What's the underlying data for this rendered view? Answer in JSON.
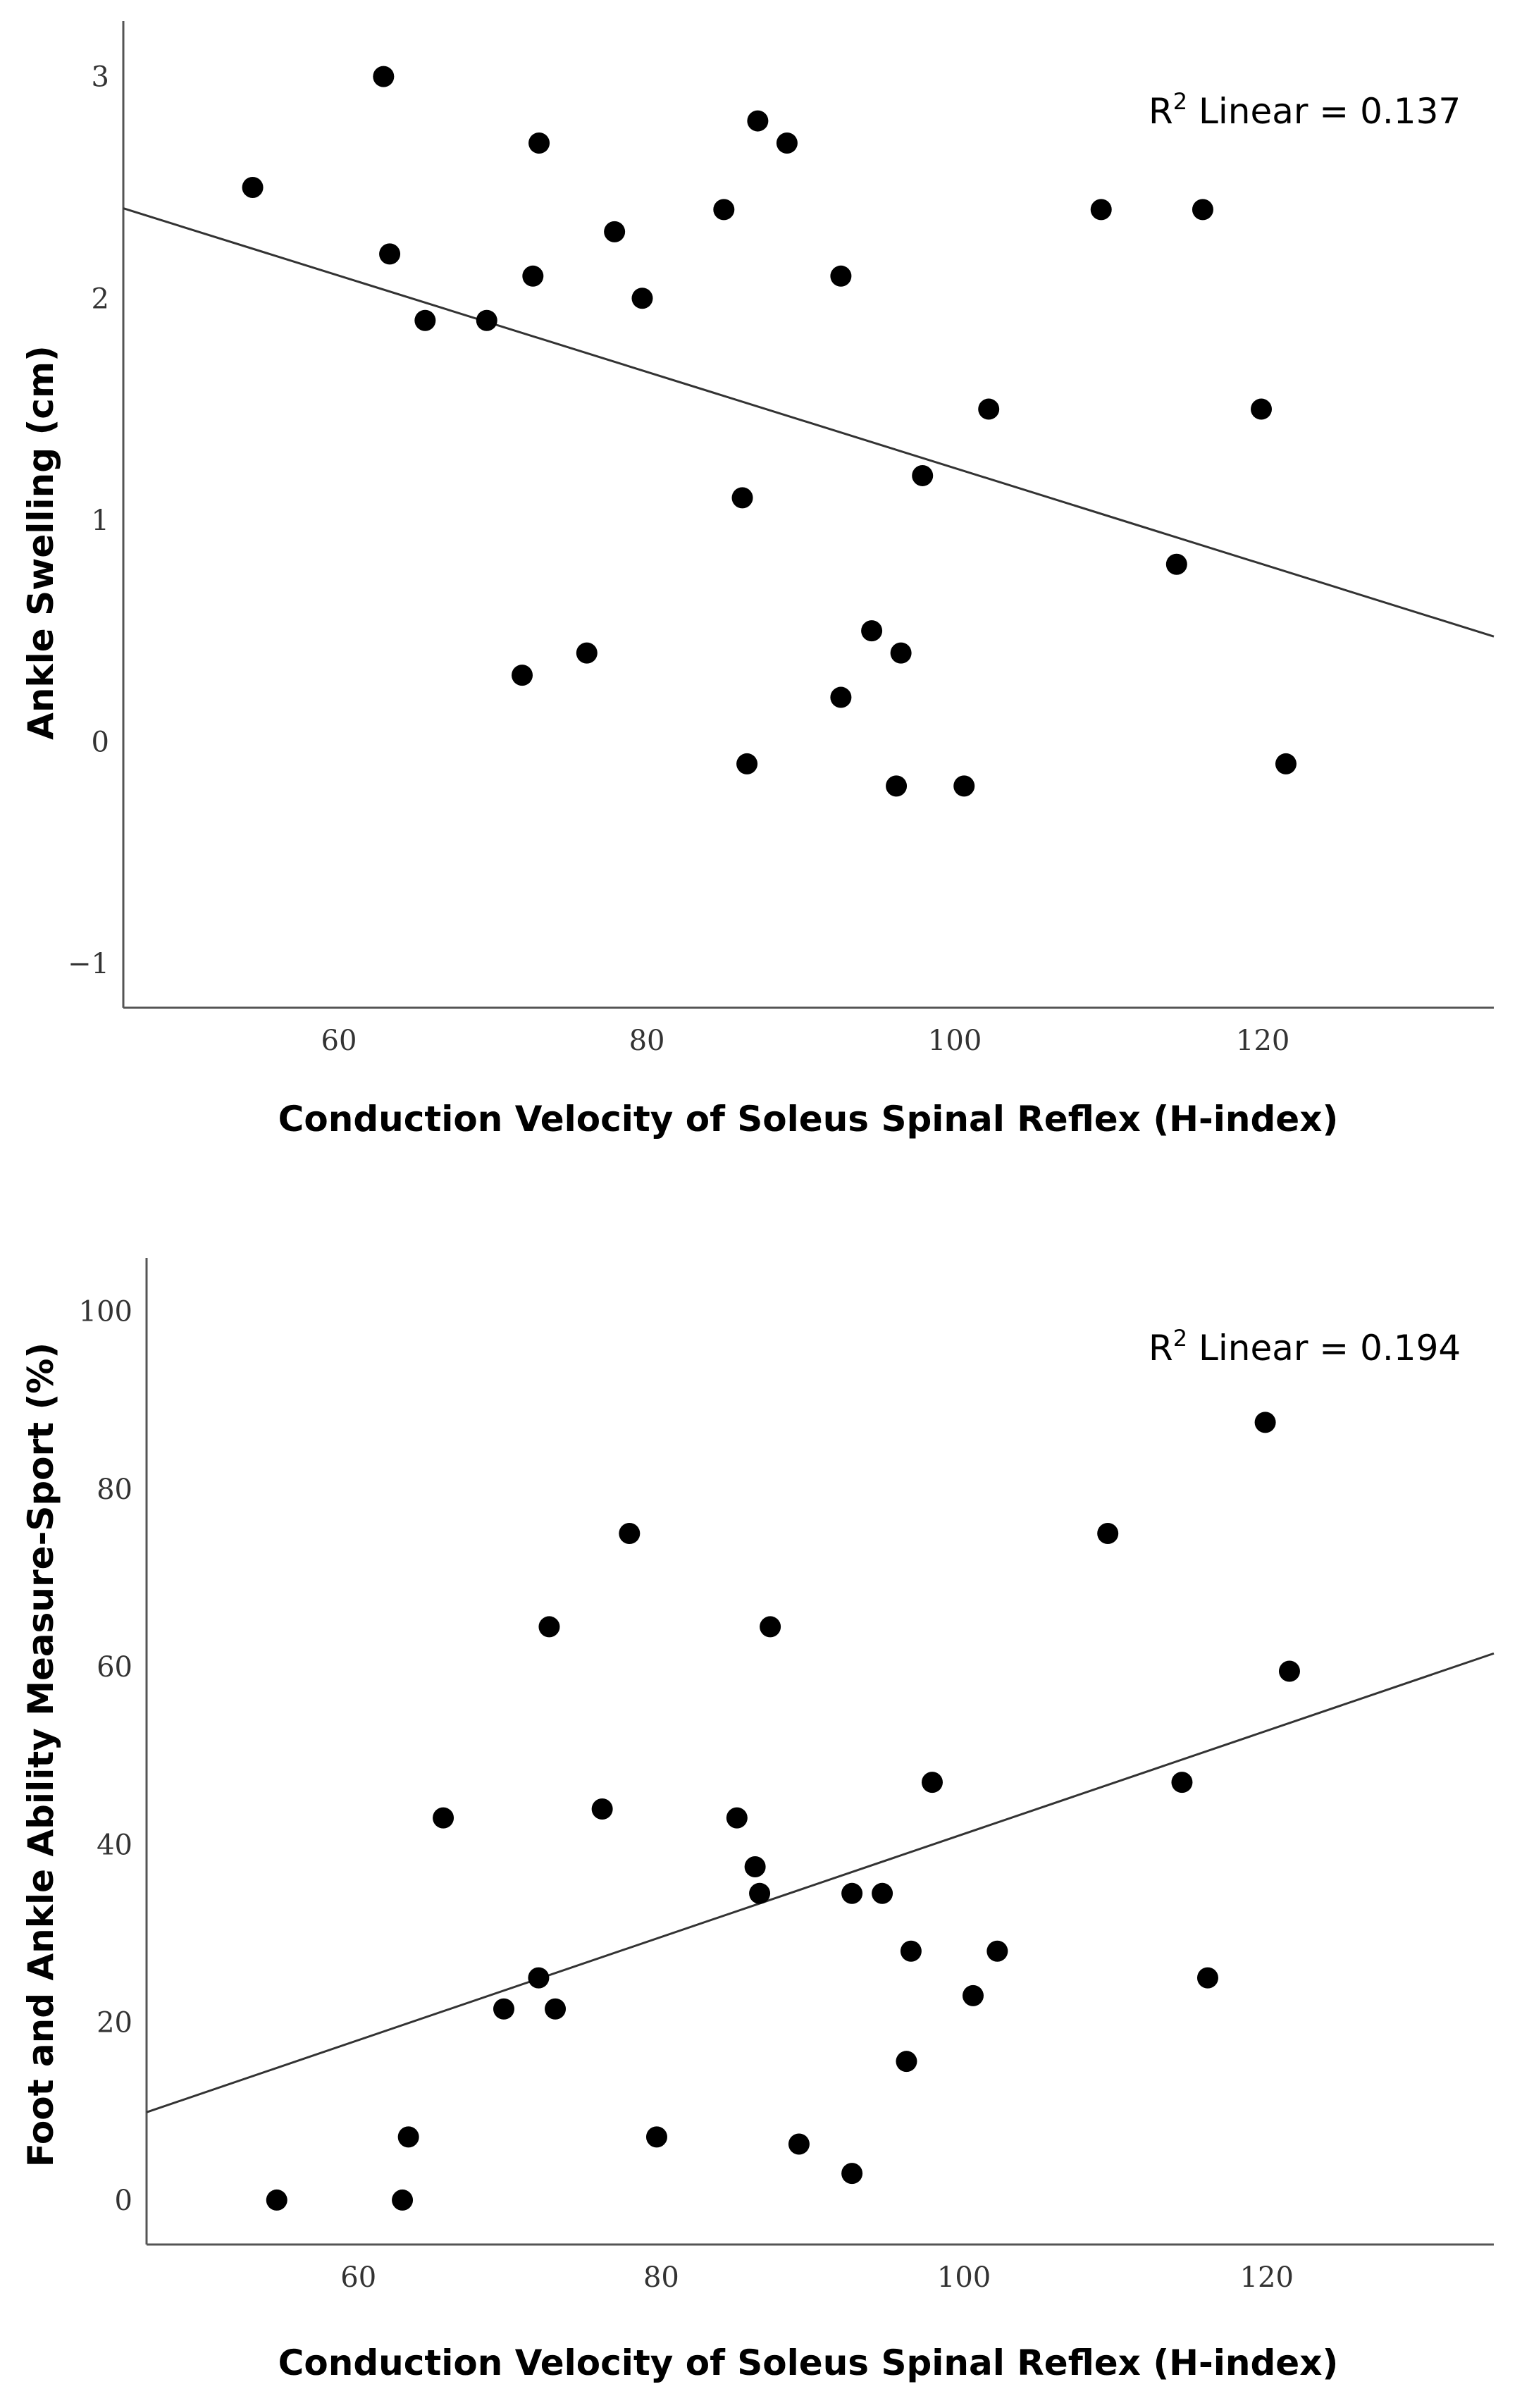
{
  "chart_data": [
    {
      "type": "scatter",
      "xlabel": "Conduction Velocity of Soleus Spinal Reflex (H-index)",
      "ylabel": "Ankle Swelling (cm)",
      "r2_prefix": "R",
      "r2_sup": "2",
      "r2_label": " Linear = 0.137",
      "xlim": [
        46,
        135
      ],
      "ylim": [
        -1.2,
        3.25
      ],
      "xticks": [
        60,
        80,
        100,
        120
      ],
      "yticks": [
        -1,
        0,
        1,
        2,
        3
      ],
      "xtick_labels": [
        "60",
        "80",
        "100",
        "120"
      ],
      "ytick_labels": [
        "−1",
        "0",
        "1",
        "2",
        "3"
      ],
      "fit_line": {
        "slope": -0.0217,
        "intercept": 3.404
      },
      "points": [
        {
          "x": 54.4,
          "y": 2.5
        },
        {
          "x": 62.9,
          "y": 3.0
        },
        {
          "x": 63.3,
          "y": 2.2
        },
        {
          "x": 65.6,
          "y": 1.9
        },
        {
          "x": 69.6,
          "y": 1.9
        },
        {
          "x": 71.9,
          "y": 0.3
        },
        {
          "x": 72.6,
          "y": 2.1
        },
        {
          "x": 73.0,
          "y": 2.7
        },
        {
          "x": 76.1,
          "y": 0.4
        },
        {
          "x": 77.9,
          "y": 2.3
        },
        {
          "x": 79.7,
          "y": 2.0
        },
        {
          "x": 85.0,
          "y": 2.4
        },
        {
          "x": 86.2,
          "y": 1.1
        },
        {
          "x": 86.5,
          "y": -0.1
        },
        {
          "x": 87.2,
          "y": 2.8
        },
        {
          "x": 89.1,
          "y": 2.7
        },
        {
          "x": 92.6,
          "y": 2.1
        },
        {
          "x": 92.6,
          "y": 0.2
        },
        {
          "x": 94.6,
          "y": 0.5
        },
        {
          "x": 96.2,
          "y": -0.2
        },
        {
          "x": 96.5,
          "y": 0.4
        },
        {
          "x": 97.9,
          "y": 1.2
        },
        {
          "x": 100.6,
          "y": -0.2
        },
        {
          "x": 102.2,
          "y": 1.5
        },
        {
          "x": 109.5,
          "y": 2.4
        },
        {
          "x": 114.4,
          "y": 0.8
        },
        {
          "x": 116.1,
          "y": 2.4
        },
        {
          "x": 119.9,
          "y": 1.5
        },
        {
          "x": 121.5,
          "y": -0.1
        }
      ]
    },
    {
      "type": "scatter",
      "xlabel": "Conduction Velocity of Soleus Spinal Reflex (H-index)",
      "ylabel": "Foot and Ankle Ability Measure-Sport (%)",
      "r2_prefix": "R",
      "r2_sup": "2",
      "r2_label": " Linear = 0.194",
      "xlim": [
        46,
        135
      ],
      "ylim": [
        -5,
        106
      ],
      "xticks": [
        60,
        80,
        100,
        120
      ],
      "yticks": [
        0,
        20,
        40,
        60,
        80,
        100
      ],
      "xtick_labels": [
        "60",
        "80",
        "100",
        "120"
      ],
      "ytick_labels": [
        "0",
        "20",
        "40",
        "60",
        "80",
        "100"
      ],
      "fit_line": {
        "slope": 0.58,
        "intercept": -16.8
      },
      "points": [
        {
          "x": 54.6,
          "y": 0
        },
        {
          "x": 62.9,
          "y": 0
        },
        {
          "x": 63.3,
          "y": 7.1
        },
        {
          "x": 65.6,
          "y": 43
        },
        {
          "x": 69.6,
          "y": 21.5
        },
        {
          "x": 71.9,
          "y": 25
        },
        {
          "x": 72.6,
          "y": 64.5
        },
        {
          "x": 73.0,
          "y": 21.5
        },
        {
          "x": 76.1,
          "y": 44
        },
        {
          "x": 77.9,
          "y": 75
        },
        {
          "x": 79.7,
          "y": 7.1
        },
        {
          "x": 85.0,
          "y": 43
        },
        {
          "x": 86.2,
          "y": 37.5
        },
        {
          "x": 86.5,
          "y": 34.5
        },
        {
          "x": 87.2,
          "y": 64.5
        },
        {
          "x": 89.1,
          "y": 6.3
        },
        {
          "x": 92.6,
          "y": 34.5
        },
        {
          "x": 92.6,
          "y": 3
        },
        {
          "x": 94.6,
          "y": 34.5
        },
        {
          "x": 96.2,
          "y": 15.6
        },
        {
          "x": 96.5,
          "y": 28
        },
        {
          "x": 97.9,
          "y": 47
        },
        {
          "x": 100.6,
          "y": 23
        },
        {
          "x": 102.2,
          "y": 28
        },
        {
          "x": 109.5,
          "y": 75
        },
        {
          "x": 114.4,
          "y": 47
        },
        {
          "x": 116.1,
          "y": 25
        },
        {
          "x": 119.9,
          "y": 87.5
        },
        {
          "x": 121.5,
          "y": 59.5
        }
      ]
    }
  ]
}
